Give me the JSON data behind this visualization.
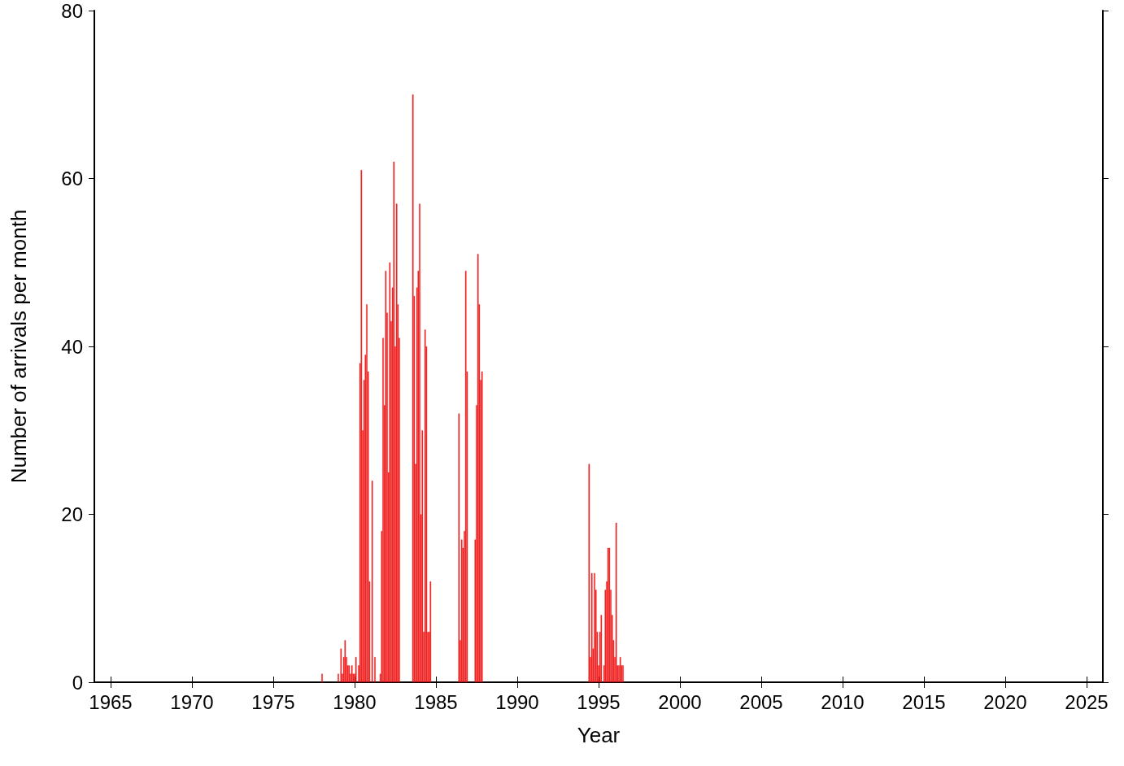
{
  "chart_data": {
    "type": "bar",
    "xlabel": "Year",
    "ylabel": "Number of arrivals per month",
    "x": [
      "1978-01",
      "1979-01",
      "1979-03",
      "1979-04",
      "1979-05",
      "1979-06",
      "1979-07",
      "1979-08",
      "1979-09",
      "1979-10",
      "1979-11",
      "1979-12",
      "1980-01",
      "1980-02",
      "1980-04",
      "1980-05",
      "1980-06",
      "1980-07",
      "1980-08",
      "1980-09",
      "1980-10",
      "1980-11",
      "1980-12",
      "1981-02",
      "1981-04",
      "1981-08",
      "1981-09",
      "1981-10",
      "1981-11",
      "1981-12",
      "1982-01",
      "1982-02",
      "1982-03",
      "1982-04",
      "1982-05",
      "1982-06",
      "1982-07",
      "1982-08",
      "1982-09",
      "1982-10",
      "1983-08",
      "1983-09",
      "1983-10",
      "1983-11",
      "1983-12",
      "1984-01",
      "1984-02",
      "1984-03",
      "1984-04",
      "1984-05",
      "1984-06",
      "1984-07",
      "1984-08",
      "1984-09",
      "1986-06",
      "1986-07",
      "1986-08",
      "1986-09",
      "1986-10",
      "1986-11",
      "1986-12",
      "1987-06",
      "1987-07",
      "1987-08",
      "1987-09",
      "1987-10",
      "1987-11",
      "1994-06",
      "1994-07",
      "1994-08",
      "1994-09",
      "1994-10",
      "1994-11",
      "1994-12",
      "1995-01",
      "1995-02",
      "1995-03",
      "1995-05",
      "1995-06",
      "1995-07",
      "1995-08",
      "1995-09",
      "1995-10",
      "1995-11",
      "1995-12",
      "1996-01",
      "1996-02",
      "1996-03",
      "1996-04",
      "1996-05",
      "1996-06",
      "1996-07"
    ],
    "values": [
      1,
      1,
      4,
      1,
      3,
      5,
      3,
      2,
      2,
      1,
      2,
      1,
      1,
      3,
      2,
      38,
      61,
      30,
      36,
      39,
      45,
      37,
      12,
      24,
      3,
      1,
      18,
      41,
      33,
      49,
      44,
      25,
      50,
      43,
      47,
      62,
      40,
      57,
      45,
      41,
      70,
      46,
      26,
      47,
      49,
      57,
      20,
      30,
      6,
      42,
      40,
      6,
      6,
      12,
      32,
      5,
      17,
      16,
      18,
      49,
      37,
      17,
      33,
      51,
      45,
      36,
      37,
      26,
      3,
      13,
      4,
      13,
      11,
      6,
      2,
      6,
      8,
      2,
      11,
      12,
      16,
      16,
      11,
      8,
      5,
      3,
      19,
      2,
      2,
      3,
      2,
      2
    ],
    "color": "#ff2a2a",
    "xlim": [
      "1964",
      "2026"
    ],
    "xticks": [
      "1965",
      "1970",
      "1975",
      "1980",
      "1985",
      "1990",
      "1995",
      "2000",
      "2005",
      "2010",
      "2015",
      "2020",
      "2025"
    ],
    "ylim": [
      0,
      80
    ],
    "yticks": [
      0,
      20,
      40,
      60,
      80
    ],
    "grid": false
  }
}
